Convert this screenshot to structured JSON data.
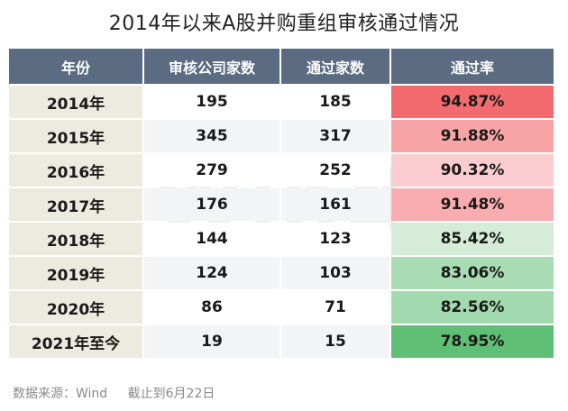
{
  "title": "2014年以来A股并购重组审核通过情况",
  "watermark": "Wind",
  "headers": [
    "年份",
    "审核公司家数",
    "通过家数",
    "通过率"
  ],
  "colors": {
    "header_bg": "#5b6b81",
    "year_bg": "#ecebe0",
    "rate_high": "#f46b6f",
    "rate_low": "#5fbf74"
  },
  "chart_data": {
    "type": "table",
    "columns": [
      "年份",
      "审核公司家数",
      "通过家数",
      "通过率"
    ],
    "rows": [
      {
        "year": "2014年",
        "reviewed": "195",
        "passed": "185",
        "rate": "94.87%",
        "rate_color": "#f46b6f"
      },
      {
        "year": "2015年",
        "reviewed": "345",
        "passed": "317",
        "rate": "91.88%",
        "rate_color": "#f9a5a8"
      },
      {
        "year": "2016年",
        "reviewed": "279",
        "passed": "252",
        "rate": "90.32%",
        "rate_color": "#fbcdd0"
      },
      {
        "year": "2017年",
        "reviewed": "176",
        "passed": "161",
        "rate": "91.48%",
        "rate_color": "#f9adb0"
      },
      {
        "year": "2018年",
        "reviewed": "144",
        "passed": "123",
        "rate": "85.42%",
        "rate_color": "#d4ecd8"
      },
      {
        "year": "2019年",
        "reviewed": "124",
        "passed": "103",
        "rate": "83.06%",
        "rate_color": "#aadcb4"
      },
      {
        "year": "2020年",
        "reviewed": "86",
        "passed": "71",
        "rate": "82.56%",
        "rate_color": "#a3d9ae"
      },
      {
        "year": "2021年至今",
        "reviewed": "19",
        "passed": "15",
        "rate": "78.95%",
        "rate_color": "#5fbf74"
      }
    ]
  },
  "footer": {
    "source": "数据来源：Wind",
    "note": "截止到6月22日"
  }
}
